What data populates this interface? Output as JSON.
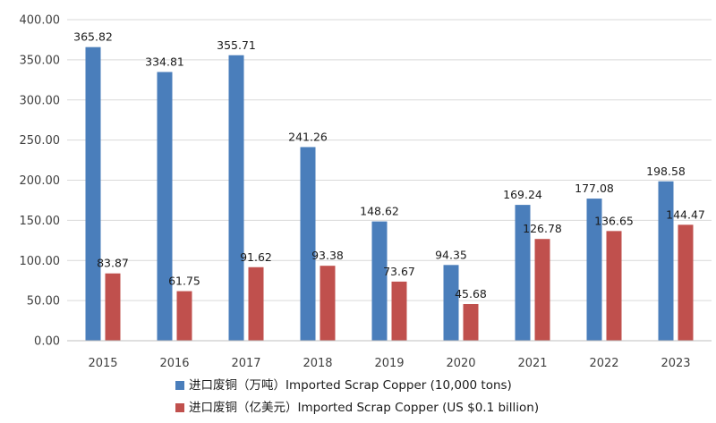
{
  "chart_data": {
    "type": "bar",
    "title": "",
    "xlabel": "",
    "ylabel": "",
    "categories": [
      "2015",
      "2016",
      "2017",
      "2018",
      "2019",
      "2020",
      "2021",
      "2022",
      "2023"
    ],
    "series": [
      {
        "name": "进口废铜（万吨）Imported Scrap Copper (10,000 tons)",
        "color": "#4a7ebb",
        "values": [
          365.82,
          334.81,
          355.71,
          241.26,
          148.62,
          94.35,
          169.24,
          177.08,
          198.58
        ],
        "labels": [
          "365.82",
          "334.81",
          "355.71",
          "241.26",
          "148.62",
          "94.35",
          "169.24",
          "177.08",
          "198.58"
        ]
      },
      {
        "name": "进口废铜（亿美元）Imported Scrap Copper (US $0.1 billion)",
        "color": "#c0504d",
        "values": [
          83.87,
          61.75,
          91.62,
          93.38,
          73.67,
          45.68,
          126.78,
          136.65,
          144.47
        ],
        "labels": [
          "83.87",
          "61.75",
          "91.62",
          "93.38",
          "73.67",
          "45.68",
          "126.78",
          "136.65",
          "144.47"
        ]
      }
    ],
    "ylim": [
      0,
      400
    ],
    "yticks": [
      "0.00",
      "50.00",
      "100.00",
      "150.00",
      "200.00",
      "250.00",
      "300.00",
      "350.00",
      "400.00"
    ],
    "grid": true,
    "legend_position": "bottom-center"
  }
}
